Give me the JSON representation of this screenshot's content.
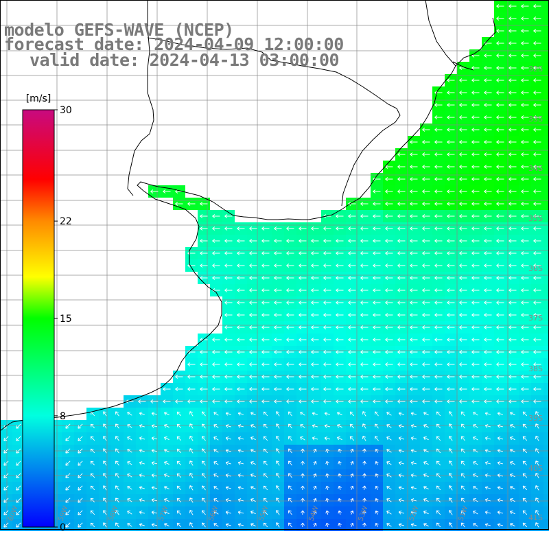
{
  "title": {
    "model": "modelo GEFS-WAVE (NCEP)",
    "forecast": "forecast date: 2024-04-09 12:00:00",
    "valid": "valid date: 2024-04-13 03:00:00"
  },
  "colorbar": {
    "unit": "[m/s]",
    "ticks": [
      "30",
      "22",
      "15",
      "8",
      "0"
    ],
    "tick_values": [
      30,
      22,
      15,
      8,
      0
    ],
    "colors": [
      "#c80a80",
      "#ff0000",
      "#ff8a00",
      "#ffff00",
      "#00ff00",
      "#00ffe0",
      "#0000ff"
    ]
  },
  "map": {
    "lon_labels": [
      "60W",
      "59W",
      "58W",
      "57W",
      "56W",
      "55W",
      "54W",
      "53W",
      "52W",
      "51W"
    ],
    "lat_labels": [
      "32S",
      "33S",
      "34S",
      "35S",
      "36S",
      "37S",
      "38S",
      "39S",
      "40S",
      "41S"
    ],
    "wind_direction": "easterly",
    "ocean_color": "#0000ff",
    "land_color": "#ffffff"
  }
}
